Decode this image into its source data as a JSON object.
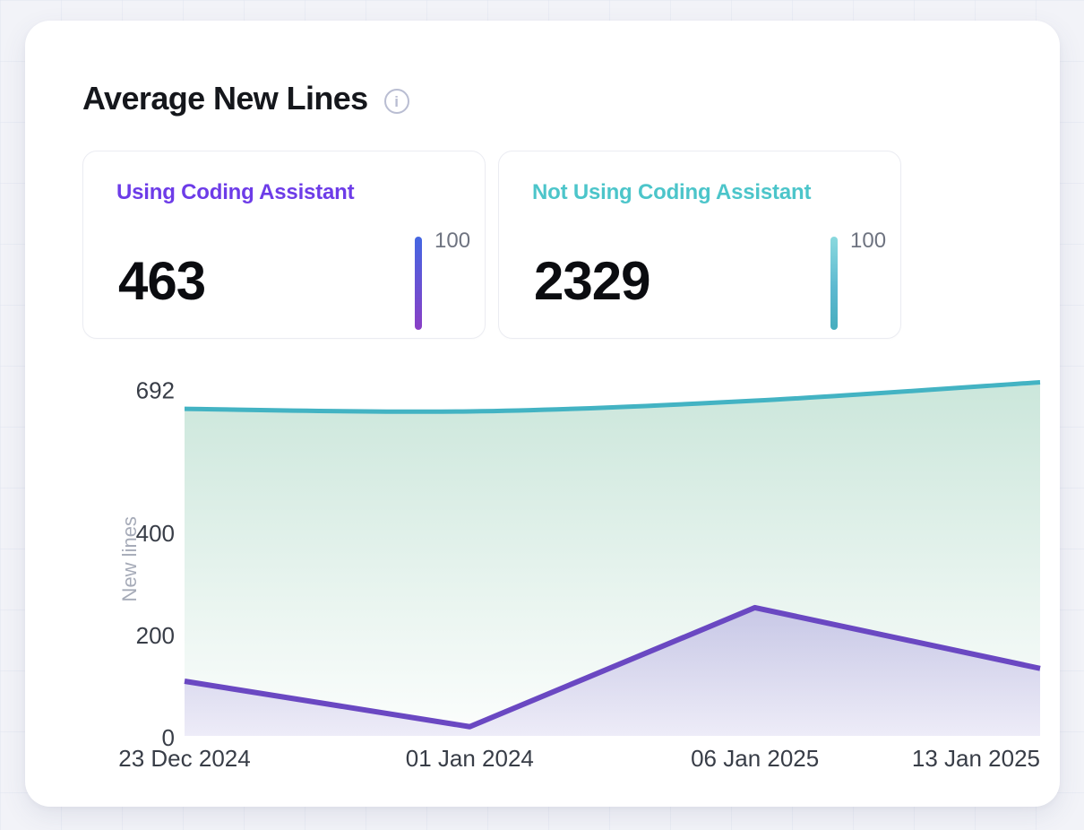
{
  "header": {
    "title": "Average New Lines",
    "info_icon": "info-icon"
  },
  "stats": [
    {
      "label": "Using Coding Assistant",
      "value": "463",
      "scale_max": "100"
    },
    {
      "label": "Not Using Coding Assistant",
      "value": "2329",
      "scale_max": "100"
    }
  ],
  "colors": {
    "accent_purple": "#6d3ce8",
    "accent_teal": "#4cc5ca",
    "bar_purple_top": "#4467e2",
    "bar_purple_bottom": "#8a3fc5",
    "bar_teal_top": "#8ad9de",
    "bar_teal_bottom": "#46adbe"
  },
  "chart_data": {
    "type": "area",
    "title": "Average New Lines",
    "x": [
      "23 Dec 2024",
      "01 Jan 2024",
      "06 Jan 2025",
      "13 Jan 2025"
    ],
    "series": [
      {
        "name": "Not Using Coding Assistant",
        "values": [
          640,
          635,
          656,
          692
        ],
        "color": "#43b3c3",
        "fill_top": "rgba(93,178,142,0.32)",
        "fill_bottom": "rgba(93,178,142,0.02)",
        "smooth": true,
        "line_width": 5
      },
      {
        "name": "Using Coding Assistant",
        "values": [
          107,
          18,
          251,
          132
        ],
        "color": "#6a48c2",
        "fill_top": "rgba(112,82,205,0.28)",
        "fill_bottom": "rgba(112,82,205,0.10)",
        "smooth": false,
        "line_width": 6
      }
    ],
    "xlabel": "",
    "ylabel": "New lines",
    "yticks": [
      0,
      200,
      400,
      692
    ],
    "ylim": [
      0,
      692
    ],
    "grid": false,
    "legend": "none",
    "tick_color": "#383d47",
    "axis_name_color": "#a6abb8"
  }
}
